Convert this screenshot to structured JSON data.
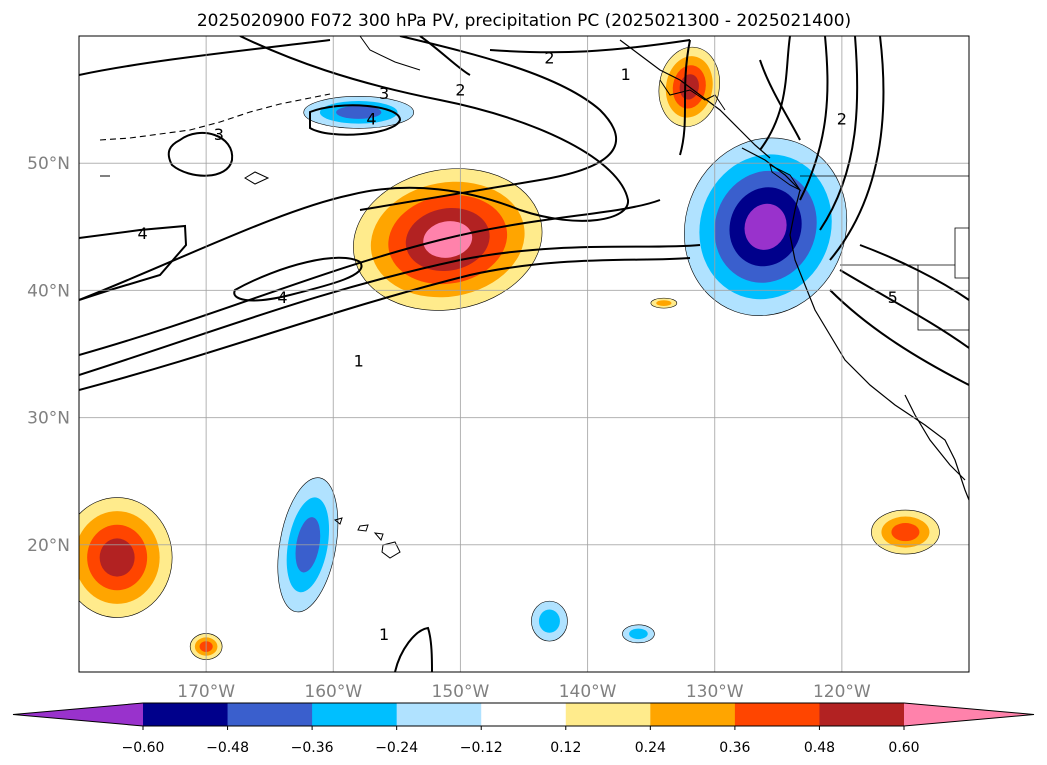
{
  "chart_data": {
    "type": "map",
    "title": "2025020900 F072 300 hPa PV, precipitation PC (2025021300 - 2025021400)",
    "extent": {
      "lon": [
        -180,
        -110
      ],
      "lat": [
        10,
        60
      ]
    },
    "grid": true,
    "x_ticks": [
      {
        "lon": -170,
        "label": "170°W"
      },
      {
        "lon": -160,
        "label": "160°W"
      },
      {
        "lon": -150,
        "label": "150°W"
      },
      {
        "lon": -140,
        "label": "140°W"
      },
      {
        "lon": -130,
        "label": "130°W"
      },
      {
        "lon": -120,
        "label": "120°W"
      }
    ],
    "y_ticks": [
      {
        "lat": 20,
        "label": "20°N"
      },
      {
        "lat": 30,
        "label": "30°N"
      },
      {
        "lat": 40,
        "label": "40°N"
      },
      {
        "lat": 50,
        "label": "50°N"
      }
    ],
    "colorbar": {
      "boundaries": [
        -0.72,
        -0.6,
        -0.48,
        -0.36,
        -0.24,
        -0.12,
        0.12,
        0.24,
        0.36,
        0.48,
        0.6,
        0.72
      ],
      "colors": [
        "#9932cc",
        "#00008b",
        "#3a5fcd",
        "#00bfff",
        "#b0e2ff",
        "#ffffff",
        "#ffeb8c",
        "#ffa500",
        "#ff4500",
        "#b22222",
        "#ff82ab"
      ],
      "tick_labels": [
        "−0.60",
        "−0.48",
        "−0.36",
        "−0.24",
        "−0.12",
        "0.12",
        "0.24",
        "0.36",
        "0.48",
        "0.60"
      ],
      "tick_values": [
        -0.6,
        -0.48,
        -0.36,
        -0.24,
        -0.12,
        0.12,
        0.24,
        0.36,
        0.48,
        0.6
      ],
      "extend": "both"
    },
    "shaded_regions": [
      {
        "name": "north-pacific-positive",
        "center": [
          -151,
          44
        ],
        "peak": 0.6
      },
      {
        "name": "west-coast-negative",
        "center": [
          -126,
          45
        ],
        "peak": -0.6
      },
      {
        "name": "alaska-panhandle-positive",
        "center": [
          -132,
          56
        ],
        "peak": 0.48
      },
      {
        "name": "aleutian-negative",
        "center": [
          -158,
          54
        ],
        "peak": -0.36
      },
      {
        "name": "far-west-positive",
        "center": [
          -177,
          19
        ],
        "peak": 0.48
      },
      {
        "name": "hawaii-west-negative",
        "center": [
          -162,
          20
        ],
        "peak": -0.36
      },
      {
        "name": "south-central-negative",
        "center": [
          -143,
          14
        ],
        "peak": -0.24
      },
      {
        "name": "south-negative",
        "center": [
          -136,
          13
        ],
        "peak": -0.24
      },
      {
        "name": "south-west-positive",
        "center": [
          -170,
          12
        ],
        "peak": 0.36
      },
      {
        "name": "mexico-offshore-positive",
        "center": [
          -115,
          21
        ],
        "peak": 0.36
      },
      {
        "name": "small-positive",
        "center": [
          -134,
          39
        ],
        "peak": 0.24
      }
    ],
    "contour_labels": [
      {
        "text": "1",
        "lon": -158,
        "lat": 34.5
      },
      {
        "text": "1",
        "lon": -137,
        "lat": 57
      },
      {
        "text": "1",
        "lon": -156,
        "lat": 13
      },
      {
        "text": "2",
        "lon": -150,
        "lat": 55.8
      },
      {
        "text": "2",
        "lon": -143,
        "lat": 58.3
      },
      {
        "text": "2",
        "lon": -120,
        "lat": 53.5
      },
      {
        "text": "3",
        "lon": -156,
        "lat": 55.5
      },
      {
        "text": "3",
        "lon": -169,
        "lat": 52.3
      },
      {
        "text": "4",
        "lon": -157,
        "lat": 53.5
      },
      {
        "text": "4",
        "lon": -175,
        "lat": 44.5
      },
      {
        "text": "4",
        "lon": -164,
        "lat": 39.5
      },
      {
        "text": "5",
        "lon": -116,
        "lat": 39.5
      }
    ]
  }
}
